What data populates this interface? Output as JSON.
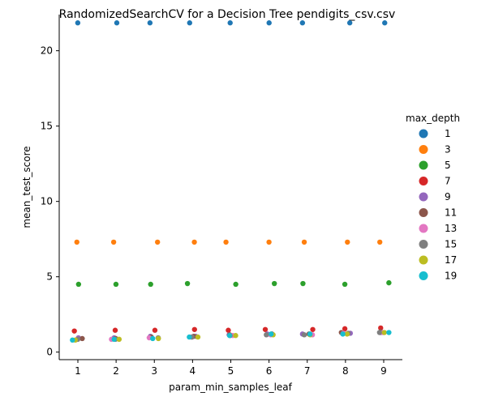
{
  "chart_data": {
    "type": "scatter",
    "title": "RandomizedSearchCV for a Decision Tree pendigits_csv.csv",
    "xlabel": "param_min_samples_leaf",
    "ylabel": "mean_test_score",
    "x_categories": [
      "1",
      "2",
      "3",
      "4",
      "5",
      "6",
      "7",
      "8",
      "9"
    ],
    "ylim": [
      -0.5,
      22.4
    ],
    "y_ticks": [
      0,
      5,
      10,
      15,
      20
    ],
    "legend_title": "max_depth",
    "legend_position": "right",
    "series": [
      {
        "name": "1",
        "color": "#1f77b4",
        "points": [
          [
            1,
            21.85
          ],
          [
            2,
            21.85
          ],
          [
            3,
            21.85
          ],
          [
            4,
            21.85
          ],
          [
            5,
            21.85
          ],
          [
            6,
            21.85
          ],
          [
            7,
            21.85
          ],
          [
            8,
            21.85
          ],
          [
            9,
            21.85
          ]
        ]
      },
      {
        "name": "3",
        "color": "#ff7f0e",
        "points": [
          [
            1,
            7.3
          ],
          [
            2,
            7.3
          ],
          [
            3,
            7.3
          ],
          [
            4,
            7.3
          ],
          [
            5,
            7.3
          ],
          [
            6,
            7.3
          ],
          [
            7,
            7.3
          ],
          [
            8,
            7.3
          ],
          [
            9,
            7.3
          ]
        ]
      },
      {
        "name": "5",
        "color": "#2ca02c",
        "points": [
          [
            1,
            4.5
          ],
          [
            2,
            4.5
          ],
          [
            3,
            4.5
          ],
          [
            4,
            4.55
          ],
          [
            5,
            4.5
          ],
          [
            6,
            4.55
          ],
          [
            7,
            4.55
          ],
          [
            8,
            4.5
          ],
          [
            9,
            4.6
          ]
        ]
      },
      {
        "name": "7",
        "color": "#d62728",
        "points": [
          [
            1,
            1.4
          ],
          [
            2,
            1.45
          ],
          [
            3,
            1.45
          ],
          [
            4,
            1.5
          ],
          [
            5,
            1.45
          ],
          [
            6,
            1.5
          ],
          [
            7,
            1.5
          ],
          [
            8,
            1.55
          ],
          [
            9,
            1.6
          ]
        ]
      },
      {
        "name": "9",
        "color": "#9467bd",
        "points": [
          [
            1,
            0.95
          ],
          [
            2,
            0.95
          ],
          [
            3,
            1.05
          ],
          [
            4,
            1.05
          ],
          [
            5,
            1.15
          ],
          [
            6,
            1.2
          ],
          [
            7,
            1.2
          ],
          [
            8,
            1.25
          ],
          [
            9,
            1.3
          ]
        ]
      },
      {
        "name": "11",
        "color": "#8c564b",
        "points": [
          [
            1,
            0.9
          ],
          [
            2,
            0.9
          ],
          [
            3,
            1.0
          ],
          [
            4,
            1.05
          ],
          [
            5,
            1.15
          ],
          [
            6,
            1.2
          ],
          [
            7,
            1.2
          ],
          [
            8,
            1.3
          ],
          [
            9,
            1.35
          ]
        ]
      },
      {
        "name": "13",
        "color": "#e377c2",
        "points": [
          [
            1,
            0.85
          ],
          [
            2,
            0.85
          ],
          [
            3,
            0.95
          ],
          [
            4,
            1.0
          ],
          [
            5,
            1.1
          ],
          [
            6,
            1.15
          ],
          [
            7,
            1.15
          ],
          [
            8,
            1.25
          ],
          [
            9,
            1.3
          ]
        ]
      },
      {
        "name": "15",
        "color": "#7f7f7f",
        "points": [
          [
            1,
            0.85
          ],
          [
            2,
            0.85
          ],
          [
            3,
            0.95
          ],
          [
            4,
            1.0
          ],
          [
            5,
            1.1
          ],
          [
            6,
            1.15
          ],
          [
            7,
            1.15
          ],
          [
            8,
            1.25
          ],
          [
            9,
            1.3
          ]
        ]
      },
      {
        "name": "17",
        "color": "#bcbd22",
        "points": [
          [
            1,
            0.8
          ],
          [
            2,
            0.85
          ],
          [
            3,
            0.9
          ],
          [
            4,
            1.0
          ],
          [
            5,
            1.1
          ],
          [
            6,
            1.15
          ],
          [
            7,
            1.15
          ],
          [
            8,
            1.2
          ],
          [
            9,
            1.3
          ]
        ]
      },
      {
        "name": "19",
        "color": "#17becf",
        "points": [
          [
            1,
            0.8
          ],
          [
            2,
            0.85
          ],
          [
            3,
            0.9
          ],
          [
            4,
            1.0
          ],
          [
            5,
            1.1
          ],
          [
            6,
            1.2
          ],
          [
            7,
            1.2
          ],
          [
            8,
            1.2
          ],
          [
            9,
            1.3
          ]
        ]
      }
    ]
  }
}
